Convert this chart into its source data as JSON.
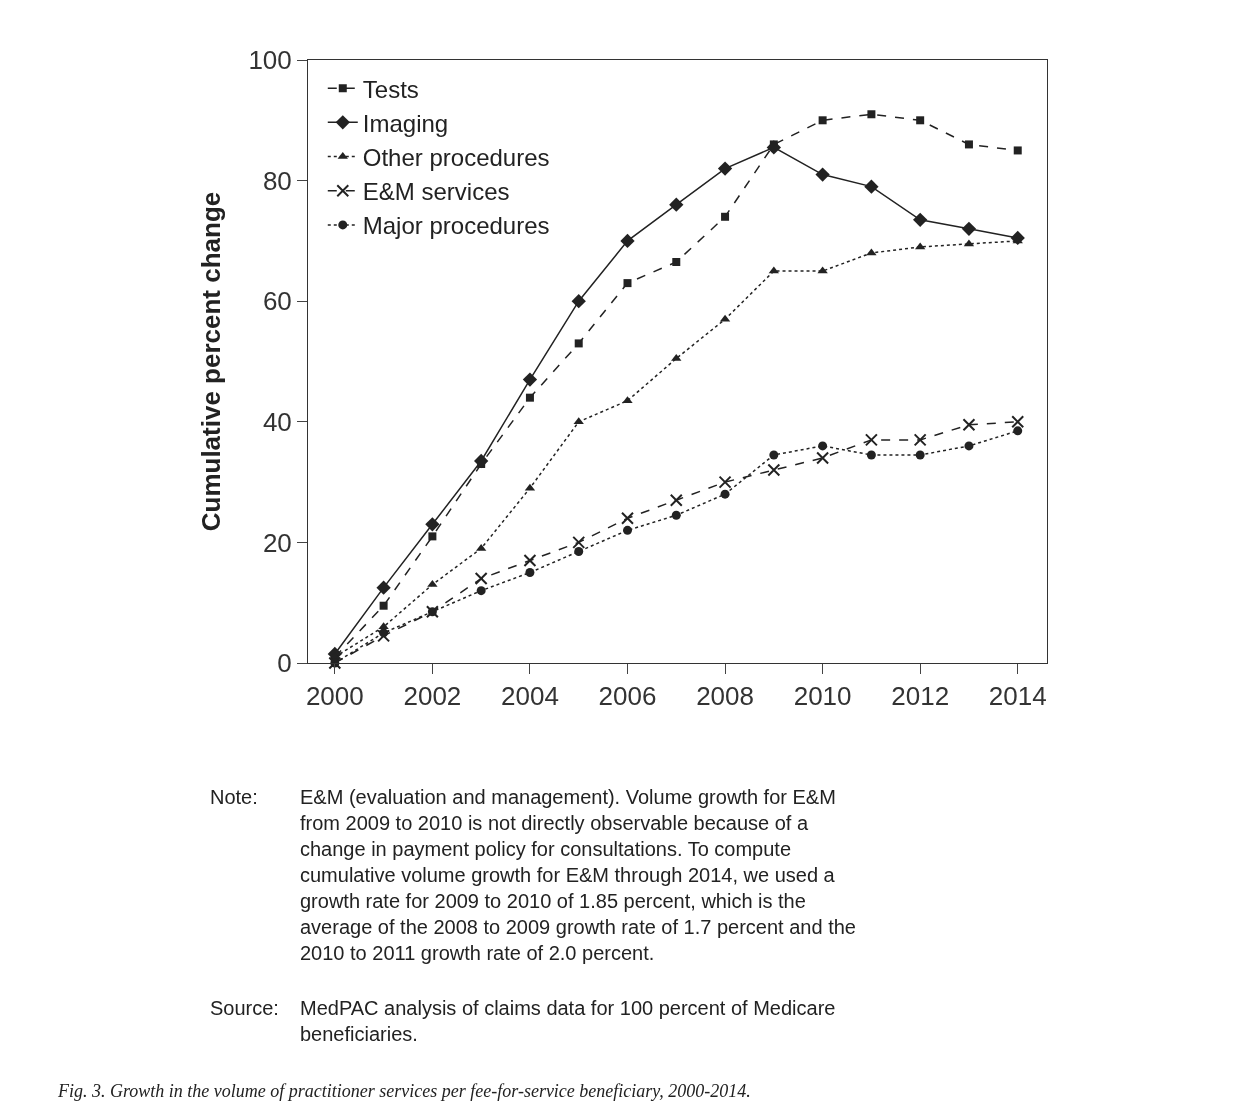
{
  "chart_data": {
    "type": "line",
    "ylabel": "Cumulative percent change",
    "x": [
      2000,
      2001,
      2002,
      2003,
      2004,
      2005,
      2006,
      2007,
      2008,
      2009,
      2010,
      2011,
      2012,
      2013,
      2014
    ],
    "series": [
      {
        "name": "Tests",
        "color": "#222222",
        "marker": "square",
        "line_style": "dashed",
        "values": [
          1,
          9.5,
          21,
          33,
          44,
          53,
          63,
          66.5,
          74,
          86,
          90,
          91,
          90,
          86,
          85
        ]
      },
      {
        "name": "Imaging",
        "color": "#222222",
        "marker": "diamond",
        "line_style": "solid",
        "values": [
          1.5,
          12.5,
          23,
          33.5,
          47,
          60,
          70,
          76,
          82,
          85.5,
          81,
          79,
          73.5,
          72,
          70.5
        ]
      },
      {
        "name": "Other procedures",
        "color": "#222222",
        "marker": "triangle",
        "line_style": "dotted",
        "values": [
          1,
          6,
          13,
          19,
          29,
          40,
          43.5,
          50.5,
          57,
          65,
          65,
          68,
          69,
          69.5,
          70
        ]
      },
      {
        "name": "E&M services",
        "color": "#222222",
        "marker": "cross",
        "line_style": "dashed",
        "values": [
          0,
          4.5,
          8.5,
          14,
          17,
          20,
          24,
          27,
          30,
          32,
          34,
          37,
          37,
          39.5,
          40
        ]
      },
      {
        "name": "Major procedures",
        "color": "#222222",
        "marker": "circle",
        "line_style": "dotted",
        "values": [
          0,
          5,
          8.5,
          12,
          15,
          18.5,
          22,
          24.5,
          28,
          34.5,
          36,
          34.5,
          34.5,
          36,
          38.5
        ]
      }
    ],
    "xlim": [
      1999.45,
      2014.6
    ],
    "xticks": [
      2000,
      2002,
      2004,
      2006,
      2008,
      2010,
      2012,
      2014
    ],
    "ylim": [
      0,
      100
    ],
    "yticks": [
      0,
      20,
      40,
      60,
      80,
      100
    ],
    "grid": false,
    "legend": "top left",
    "annotations": [
      "Note:",
      "E&M (evaluation and management). Volume growth for E&M from 2009 to 2010 is not directly observable because of a change in payment policy for consultations. To compute cumulative volume growth for E&M through 2014, we used a growth rate for 2009 to 2010 of 1.85 percent, which is the average of the 2008 to 2009 growth rate of 1.7 percent and the 2010 to 2011 growth rate of 2.0 percent.",
      "Source:",
      "MedPAC analysis of claims data for 100 percent of Medicare beneficiaries.",
      "Fig. 3. Growth in the volume of practitioner services per fee-for-service beneficiary, 2000-2014."
    ]
  }
}
